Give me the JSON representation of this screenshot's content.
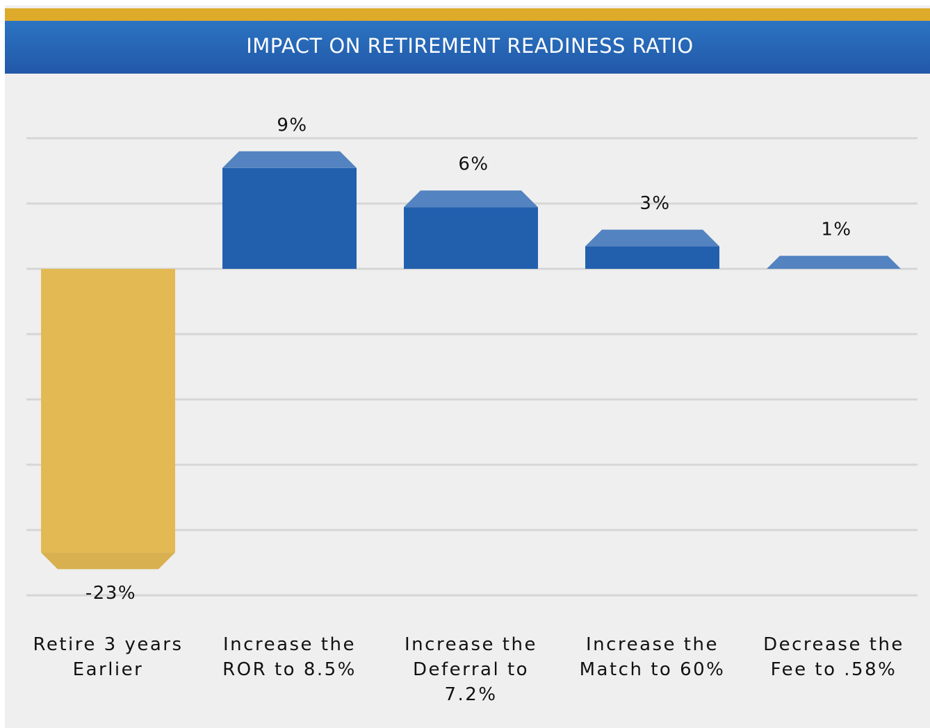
{
  "chart_data": {
    "type": "bar",
    "title": "IMPACT ON RETIREMENT READINESS RATIO",
    "categories": [
      "Retire 3 years Earlier",
      "Increase the ROR to 8.5%",
      "Increase the Deferral to 7.2%",
      "Increase the Match to 60%",
      "Decrease the Fee to .58%"
    ],
    "values": [
      -23,
      9,
      6,
      3,
      1
    ],
    "value_labels": [
      "-23%",
      "9%",
      "6%",
      "3%",
      "1%"
    ],
    "colors": {
      "positive": "#2260ae",
      "negative": "#e3b953"
    },
    "ylim": [
      -25,
      10
    ],
    "yticks": [
      -25,
      -20,
      -15,
      -10,
      -5,
      0,
      5,
      10
    ],
    "grid": true
  }
}
